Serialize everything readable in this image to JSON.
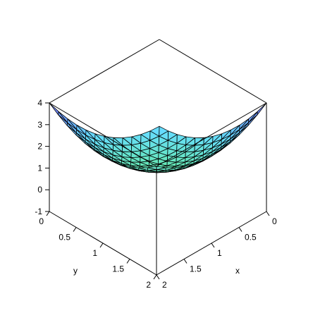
{
  "chart_data": {
    "type": "surface3d",
    "title": "",
    "xlabel": "x",
    "ylabel": "y",
    "zlabel": "",
    "x_ticks": [
      "0",
      "0.5",
      "1",
      "1.5",
      "2"
    ],
    "y_ticks": [
      "0",
      "0.5",
      "1",
      "1.5",
      "2"
    ],
    "z_ticks": [
      "-1",
      "0",
      "1",
      "2",
      "3",
      "4"
    ],
    "xlim": [
      0,
      2
    ],
    "ylim": [
      0,
      2
    ],
    "zlim": [
      -1,
      4
    ],
    "grid_resolution": 12,
    "style": "patch-wireframe-triangulated",
    "surface": {
      "description_expression": "z = x*x + y*y - x*y (approximate)",
      "note": ""
    },
    "colors": {
      "z_low": "#ee5555",
      "z_mid_a": "#ffee88",
      "z_mid_b": "#66ee88",
      "z_high_a": "#66ddff",
      "z_high_b": "#7766ff",
      "z_top": "#ee55ee",
      "wire": "#000000"
    }
  }
}
